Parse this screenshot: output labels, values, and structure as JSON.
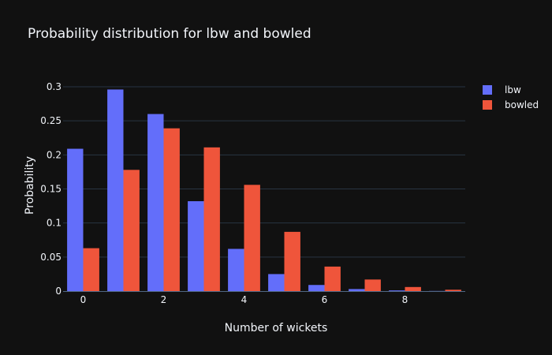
{
  "chart_data": {
    "type": "bar",
    "title": "Probability distribution for lbw and bowled",
    "xlabel": "Number of wickets",
    "ylabel": "Probability",
    "x": [
      0,
      1,
      2,
      3,
      4,
      5,
      6,
      7,
      8,
      9
    ],
    "series": [
      {
        "name": "lbw",
        "color": "#636efa",
        "values": [
          0.209,
          0.296,
          0.26,
          0.132,
          0.062,
          0.025,
          0.009,
          0.003,
          0.001,
          0.0002
        ]
      },
      {
        "name": "bowled",
        "color": "#ef553b",
        "values": [
          0.063,
          0.178,
          0.239,
          0.211,
          0.156,
          0.087,
          0.036,
          0.017,
          0.006,
          0.002
        ]
      }
    ],
    "xlim": [
      -0.5,
      9.5
    ],
    "ylim": [
      0,
      0.3
    ],
    "xticks": [
      "0",
      "2",
      "4",
      "6",
      "8"
    ],
    "yticks": [
      "0",
      "0.05",
      "0.1",
      "0.15",
      "0.2",
      "0.25",
      "0.3"
    ],
    "grid": true,
    "legend": "top-right"
  }
}
